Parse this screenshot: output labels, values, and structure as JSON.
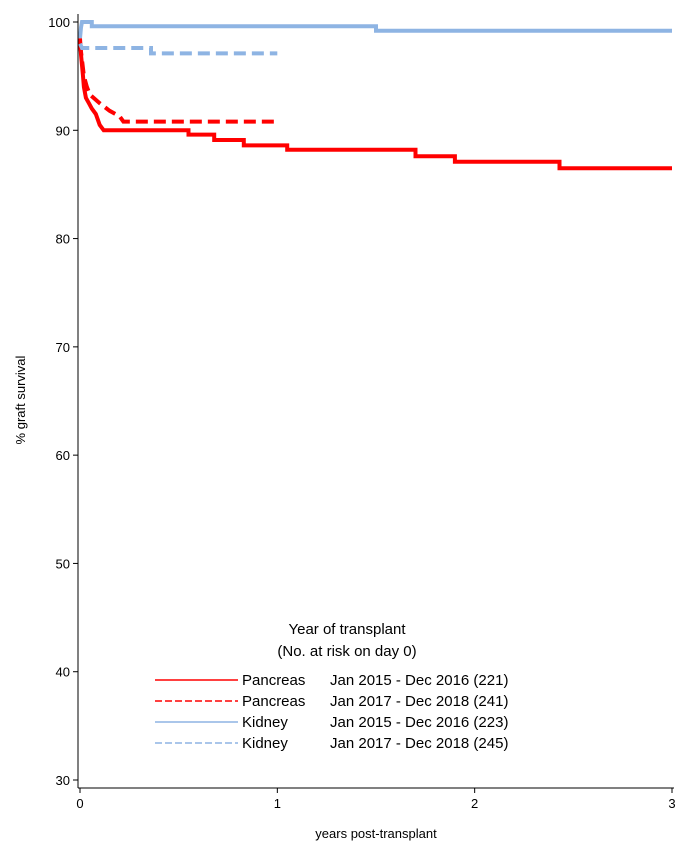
{
  "chart_data": {
    "type": "line",
    "title": "",
    "xlabel": "years post-transplant",
    "ylabel": "% graft survival",
    "xlim": [
      0,
      3
    ],
    "ylim": [
      30,
      100
    ],
    "x_ticks": [
      "0",
      "1",
      "2",
      "3"
    ],
    "y_ticks": [
      "30",
      "40",
      "50",
      "60",
      "70",
      "80",
      "90",
      "100"
    ],
    "x_tick_values": [
      0,
      1,
      2,
      3
    ],
    "y_tick_values": [
      30,
      40,
      50,
      60,
      70,
      80,
      90,
      100
    ],
    "grid": false,
    "legend": {
      "title_line1": "Year of transplant",
      "title_line2": "(No. at risk on day 0)",
      "placement": "bottom-center",
      "entries": [
        {
          "organ": "Pancreas",
          "period": "Jan 2015 - Dec 2016 (221)"
        },
        {
          "organ": "Pancreas",
          "period": "Jan 2017 - Dec 2018 (241)"
        },
        {
          "organ": "Kidney",
          "period": "Jan 2015 - Dec 2016 (223)"
        },
        {
          "organ": "Kidney",
          "period": "Jan 2017 - Dec 2018 (245)"
        }
      ]
    },
    "series": [
      {
        "color": "#ff0000",
        "dash": "solid",
        "points": [
          [
            0,
            98.5
          ],
          [
            0.005,
            97
          ],
          [
            0.01,
            96
          ],
          [
            0.015,
            95
          ],
          [
            0.02,
            94
          ],
          [
            0.03,
            93
          ],
          [
            0.045,
            92.5
          ],
          [
            0.06,
            92
          ],
          [
            0.08,
            91.5
          ],
          [
            0.1,
            90.5
          ],
          [
            0.12,
            90
          ],
          [
            0.55,
            90
          ],
          [
            0.55,
            89.6
          ],
          [
            0.68,
            89.6
          ],
          [
            0.68,
            89.1
          ],
          [
            0.83,
            89.1
          ],
          [
            0.83,
            88.6
          ],
          [
            1.05,
            88.6
          ],
          [
            1.05,
            88.2
          ],
          [
            1.7,
            88.2
          ],
          [
            1.7,
            87.6
          ],
          [
            1.9,
            87.6
          ],
          [
            1.9,
            87.1
          ],
          [
            2.43,
            87.1
          ],
          [
            2.43,
            86.5
          ],
          [
            3.0,
            86.5
          ]
        ]
      },
      {
        "color": "#ff0000",
        "dash": "dashed",
        "points": [
          [
            0,
            98
          ],
          [
            0.01,
            96.5
          ],
          [
            0.02,
            95
          ],
          [
            0.035,
            94
          ],
          [
            0.05,
            93.3
          ],
          [
            0.1,
            92.5
          ],
          [
            0.15,
            91.8
          ],
          [
            0.2,
            91.3
          ],
          [
            0.22,
            90.8
          ],
          [
            1.0,
            90.8
          ]
        ]
      },
      {
        "color": "#8eb4e3",
        "dash": "solid",
        "points": [
          [
            0,
            98.5
          ],
          [
            0.005,
            99.5
          ],
          [
            0.01,
            100
          ],
          [
            0.06,
            100
          ],
          [
            0.06,
            99.6
          ],
          [
            1.5,
            99.6
          ],
          [
            1.5,
            99.2
          ],
          [
            3.0,
            99.2
          ]
        ]
      },
      {
        "color": "#8eb4e3",
        "dash": "dashed",
        "points": [
          [
            0,
            98
          ],
          [
            0.01,
            97.6
          ],
          [
            0.36,
            97.6
          ],
          [
            0.36,
            97.1
          ],
          [
            1.0,
            97.1
          ]
        ]
      }
    ]
  }
}
